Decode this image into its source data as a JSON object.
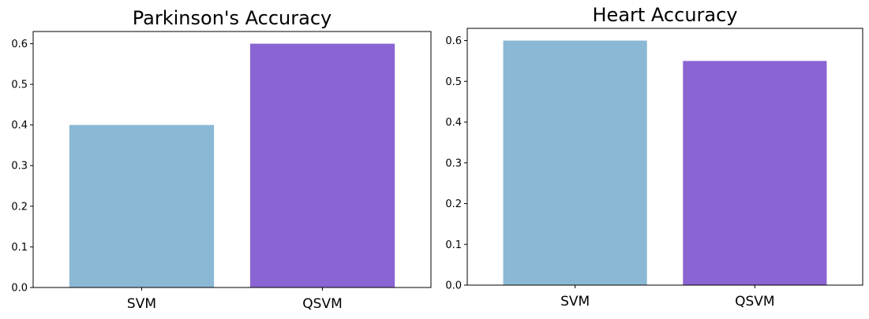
{
  "chart_data": [
    {
      "type": "bar",
      "title": "Parkinson's Accuracy",
      "categories": [
        "SVM",
        "QSVM"
      ],
      "values": [
        0.4,
        0.6
      ],
      "colors": [
        "#8bb8d4",
        "#8a64d2"
      ],
      "ylim": [
        0,
        0.63
      ],
      "yticks": [
        "0.0",
        "0.1",
        "0.2",
        "0.3",
        "0.4",
        "0.5",
        "0.6"
      ],
      "grid": false
    },
    {
      "type": "bar",
      "title": "Heart Accuracy",
      "categories": [
        "SVM",
        "QSVM"
      ],
      "values": [
        0.6,
        0.55
      ],
      "colors": [
        "#8bb8d4",
        "#8a64d2"
      ],
      "ylim": [
        0,
        0.63
      ],
      "yticks": [
        "0.0",
        "0.1",
        "0.2",
        "0.3",
        "0.4",
        "0.5",
        "0.6"
      ],
      "grid": false
    }
  ]
}
